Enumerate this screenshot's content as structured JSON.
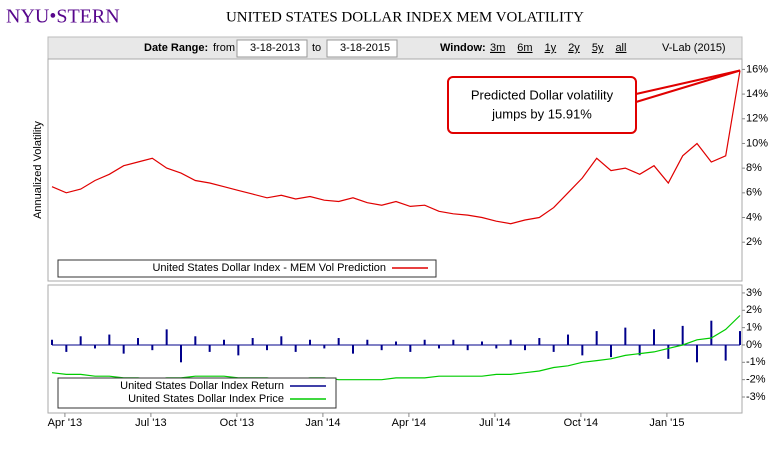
{
  "header": {
    "logo": "NYU•STERN",
    "title": "UNITED STATES DOLLAR INDEX MEM VOLATILITY"
  },
  "controls": {
    "date_range_label": "Date Range:",
    "from_label": "from",
    "from": "3-18-2013",
    "to_label": "to",
    "to": "3-18-2015",
    "window_label": "Window:",
    "windows": [
      "3m",
      "6m",
      "1y",
      "2y",
      "5y",
      "all"
    ],
    "credit": "V-Lab (2015)"
  },
  "chart_data": [
    {
      "type": "line",
      "ylabel": "Annualized Volatility",
      "xlim": [
        0,
        48
      ],
      "ylim": [
        -0.9,
        16.6
      ],
      "yticks": [
        {
          "value": 2,
          "label": "2%"
        },
        {
          "value": 4,
          "label": "4%"
        },
        {
          "value": 6,
          "label": "6%"
        },
        {
          "value": 8,
          "label": "8%"
        },
        {
          "value": 10,
          "label": "10%"
        },
        {
          "value": 12,
          "label": "12%"
        },
        {
          "value": 14,
          "label": "14%"
        },
        {
          "value": 16,
          "label": "16%"
        }
      ],
      "legend": "lower-left",
      "annotation": [
        "Predicted Dollar volatility",
        "jumps by 15.91%"
      ],
      "series": [
        {
          "name": "United States Dollar Index - MEM Vol Prediction",
          "color": "#e00000",
          "values": [
            6.5,
            6.0,
            6.3,
            7.0,
            7.5,
            8.2,
            8.5,
            8.8,
            8.0,
            7.6,
            7.0,
            6.8,
            6.5,
            6.2,
            5.9,
            5.6,
            5.8,
            5.5,
            5.7,
            5.4,
            5.3,
            5.6,
            5.2,
            5.0,
            5.3,
            4.9,
            5.0,
            4.5,
            4.3,
            4.2,
            4.0,
            3.7,
            3.5,
            3.8,
            4.0,
            4.8,
            6.0,
            7.2,
            8.8,
            7.8,
            8.0,
            7.5,
            8.2,
            6.8,
            9.0,
            10.0,
            8.5,
            9.0,
            15.91
          ]
        }
      ]
    },
    {
      "type": "bar-line",
      "xlim": [
        0,
        48
      ],
      "ylim": [
        -3.75,
        3.4
      ],
      "yticks": [
        {
          "value": -3,
          "label": "-3%"
        },
        {
          "value": -2,
          "label": "-2%"
        },
        {
          "value": -1,
          "label": "-1%"
        },
        {
          "value": 0,
          "label": "0%"
        },
        {
          "value": 1,
          "label": "1%"
        },
        {
          "value": 2,
          "label": "2%"
        },
        {
          "value": 3,
          "label": "3%"
        }
      ],
      "xticks": [
        {
          "value": 0.9,
          "label": "Apr '13"
        },
        {
          "value": 6.9,
          "label": "Jul '13"
        },
        {
          "value": 12.9,
          "label": "Oct '13"
        },
        {
          "value": 18.9,
          "label": "Jan '14"
        },
        {
          "value": 24.9,
          "label": "Apr '14"
        },
        {
          "value": 30.9,
          "label": "Jul '14"
        },
        {
          "value": 36.9,
          "label": "Oct '14"
        },
        {
          "value": 42.9,
          "label": "Jan '15"
        }
      ],
      "legend": "lower-left",
      "series": [
        {
          "name": "United States Dollar Index Return",
          "color": "#00008b",
          "values": [
            0.3,
            -0.4,
            0.5,
            -0.2,
            0.6,
            -0.5,
            0.4,
            -0.3,
            0.9,
            -1.0,
            0.5,
            -0.4,
            0.3,
            -0.6,
            0.4,
            -0.3,
            0.5,
            -0.4,
            0.3,
            -0.2,
            0.4,
            -0.5,
            0.3,
            -0.3,
            0.2,
            -0.4,
            0.3,
            -0.2,
            0.3,
            -0.3,
            0.2,
            -0.2,
            0.3,
            -0.3,
            0.4,
            -0.4,
            0.6,
            -0.6,
            0.8,
            -0.7,
            1.0,
            -0.6,
            0.9,
            -0.8,
            1.1,
            -1.0,
            1.4,
            -0.9,
            0.8
          ]
        },
        {
          "name": "United States Dollar Index Price",
          "color": "#00cc00",
          "values": [
            -1.6,
            -1.7,
            -1.7,
            -1.8,
            -1.8,
            -1.9,
            -1.9,
            -2.0,
            -1.9,
            -1.9,
            -1.8,
            -1.8,
            -1.8,
            -1.9,
            -1.9,
            -1.9,
            -2.0,
            -2.0,
            -1.9,
            -1.9,
            -2.0,
            -2.0,
            -2.0,
            -2.0,
            -1.9,
            -1.9,
            -1.9,
            -1.8,
            -1.8,
            -1.8,
            -1.8,
            -1.7,
            -1.7,
            -1.6,
            -1.5,
            -1.3,
            -1.2,
            -1.0,
            -0.9,
            -0.8,
            -0.6,
            -0.5,
            -0.4,
            -0.2,
            0.0,
            0.3,
            0.4,
            0.9,
            1.7
          ]
        }
      ]
    }
  ]
}
